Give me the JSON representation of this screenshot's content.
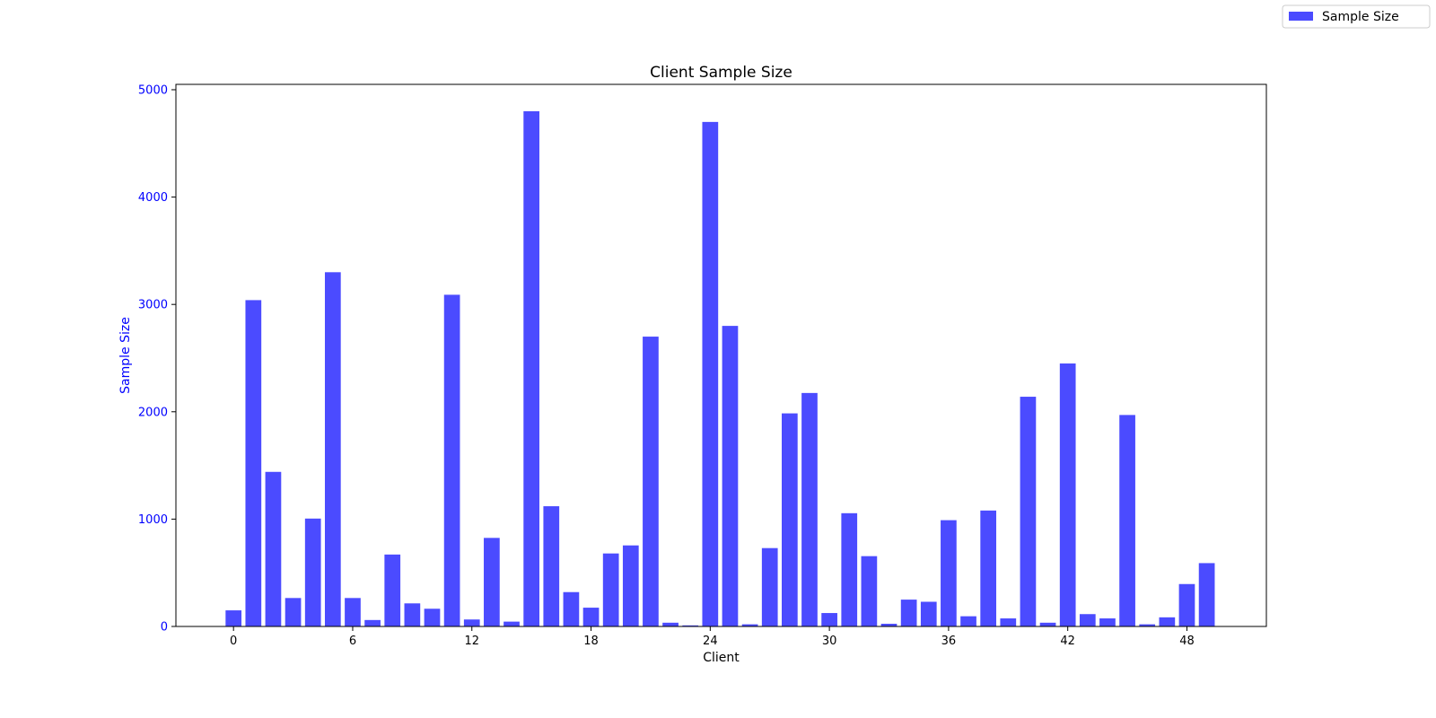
{
  "chart_data": {
    "type": "bar",
    "title": "Client Sample Size",
    "xlabel": "Client",
    "ylabel": "Sample Size",
    "x": [
      0,
      1,
      2,
      3,
      4,
      5,
      6,
      7,
      8,
      9,
      10,
      11,
      12,
      13,
      14,
      15,
      16,
      17,
      18,
      19,
      20,
      21,
      22,
      23,
      24,
      25,
      26,
      27,
      28,
      29,
      30,
      31,
      32,
      33,
      34,
      35,
      36,
      37,
      38,
      39,
      40,
      41,
      42,
      43,
      44,
      45,
      46,
      47,
      48,
      49
    ],
    "values": [
      150,
      3040,
      1440,
      265,
      1005,
      3300,
      265,
      60,
      670,
      215,
      165,
      3090,
      65,
      825,
      45,
      4800,
      1120,
      320,
      175,
      680,
      755,
      2700,
      35,
      10,
      4700,
      2800,
      20,
      730,
      1985,
      2175,
      125,
      1055,
      655,
      25,
      250,
      230,
      990,
      95,
      1080,
      75,
      2140,
      35,
      2450,
      115,
      75,
      1970,
      20,
      85,
      395,
      590
    ],
    "series": [
      {
        "name": "Sample Size",
        "color": "#4b4bff"
      }
    ],
    "xlim": [
      -2.9,
      52.0
    ],
    "ylim": [
      0,
      5050
    ],
    "xticks": [
      0,
      6,
      12,
      18,
      24,
      30,
      36,
      42,
      48
    ],
    "yticks": [
      0,
      1000,
      2000,
      3000,
      4000,
      5000
    ],
    "ytick_color": "#0000ff",
    "grid": false,
    "legend_placement": "top-right"
  }
}
